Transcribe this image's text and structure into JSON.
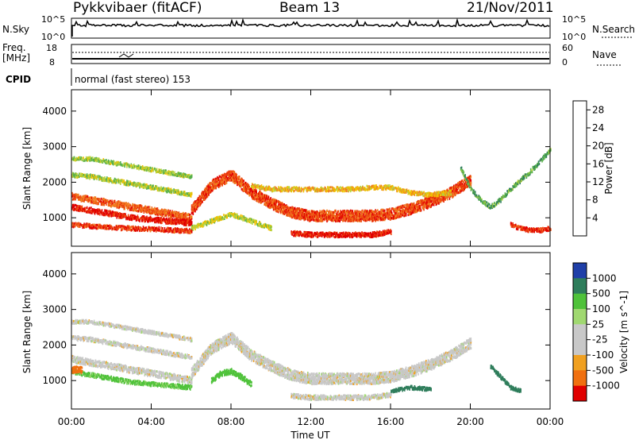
{
  "header": {
    "station": "Pykkvibaer (fitACF)",
    "beam": "Beam 13",
    "date": "21/Nov/2011"
  },
  "nsky_panel": {
    "left_label": "N.Sky",
    "left_ticks": [
      "10^5",
      "10^0"
    ],
    "right_ticks": [
      "10^5",
      "10^0"
    ],
    "right_label": "N.Search"
  },
  "freq_panel": {
    "left_label_1": "Freq.",
    "left_label_2": "[MHz]",
    "left_ticks": [
      "18",
      "8"
    ],
    "right_ticks": [
      "60",
      "0"
    ],
    "right_label": "Nave"
  },
  "cpid_panel": {
    "label": "CPID",
    "text": "normal (fast stereo) 153"
  },
  "colors": {
    "power_scale": [
      "#0000ff",
      "#1b4fa0",
      "#2e7d5b",
      "#56b04a",
      "#b5d23e",
      "#f0c000",
      "#f08020",
      "#ee4a10",
      "#e00000"
    ],
    "velocity_scale": [
      "#1f3fa8",
      "#2e7d5b",
      "#4fc23a",
      "#a0d870",
      "#c8c8c8",
      "#c8c8c8",
      "#f0a020",
      "#f07010",
      "#e00000"
    ],
    "ground_scatter": "#c8c8c8"
  },
  "chart_data": [
    {
      "type": "heatmap",
      "title": "",
      "ylabel": "Slant Range [km]",
      "xlabel": "",
      "x_ticks": [
        "00:00",
        "04:00",
        "08:00",
        "12:00",
        "16:00",
        "20:00",
        "00:00"
      ],
      "y_ticks": [
        1000,
        2000,
        3000,
        4000
      ],
      "ylim": [
        200,
        4600
      ],
      "xlim_hours": [
        0,
        24
      ],
      "colorbar": {
        "label": "Power [dB]",
        "ticks": [
          "4",
          "8",
          "12",
          "16",
          "20",
          "24",
          "28"
        ],
        "range": [
          0,
          30
        ]
      },
      "bands": [
        {
          "t": [
            0,
            1,
            2,
            3,
            4,
            5,
            6
          ],
          "r": [
            2650,
            2650,
            2550,
            2450,
            2350,
            2250,
            2150
          ],
          "w": 100,
          "p": 14
        },
        {
          "t": [
            0,
            1,
            2,
            3,
            4,
            5,
            6
          ],
          "r": [
            2200,
            2150,
            2050,
            1950,
            1850,
            1750,
            1650
          ],
          "w": 120,
          "p": 15
        },
        {
          "t": [
            0,
            1,
            2,
            3,
            4,
            5,
            6
          ],
          "r": [
            1600,
            1500,
            1400,
            1300,
            1200,
            1100,
            1000
          ],
          "w": 180,
          "p": 24
        },
        {
          "t": [
            0,
            1,
            2,
            3,
            4,
            5,
            6
          ],
          "r": [
            1300,
            1200,
            1100,
            1000,
            950,
            900,
            850
          ],
          "w": 150,
          "p": 28
        },
        {
          "t": [
            0,
            1,
            2,
            3,
            4,
            5,
            6
          ],
          "r": [
            800,
            760,
            720,
            700,
            680,
            650,
            620
          ],
          "w": 120,
          "p": 26
        },
        {
          "t": [
            6,
            7,
            8,
            9,
            10,
            11,
            12,
            13,
            14,
            15,
            16,
            17,
            18,
            19,
            20
          ],
          "r": [
            1200,
            1900,
            2200,
            1700,
            1400,
            1150,
            1050,
            1050,
            1050,
            1050,
            1100,
            1250,
            1450,
            1700,
            2050
          ],
          "w": 300,
          "p": 25
        },
        {
          "t": [
            9,
            10,
            11,
            12,
            13,
            14,
            15,
            16,
            17,
            18,
            19
          ],
          "r": [
            1900,
            1800,
            1800,
            1800,
            1800,
            1800,
            1850,
            1850,
            1700,
            1650,
            1700
          ],
          "w": 120,
          "p": 19
        },
        {
          "t": [
            11,
            12,
            13,
            14,
            15,
            16
          ],
          "r": [
            560,
            520,
            520,
            520,
            520,
            600
          ],
          "w": 130,
          "p": 28
        },
        {
          "t": [
            6,
            7,
            8,
            9,
            10
          ],
          "r": [
            700,
            900,
            1100,
            900,
            700
          ],
          "w": 120,
          "p": 16
        },
        {
          "t": [
            19.5,
            20,
            20.5,
            21,
            21.5,
            22,
            23,
            24
          ],
          "r": [
            2400,
            1800,
            1500,
            1300,
            1500,
            1800,
            2300,
            2900
          ],
          "w": 120,
          "p": 11
        },
        {
          "t": [
            22,
            22.5,
            23,
            23.5,
            24
          ],
          "r": [
            800,
            700,
            650,
            650,
            700
          ],
          "w": 120,
          "p": 27
        }
      ]
    },
    {
      "type": "heatmap",
      "title": "",
      "ylabel": "Slant Range [km]",
      "xlabel": "Time UT",
      "x_ticks": [
        "00:00",
        "04:00",
        "08:00",
        "12:00",
        "16:00",
        "20:00",
        "00:00"
      ],
      "y_ticks": [
        1000,
        2000,
        3000,
        4000
      ],
      "ylim": [
        200,
        4600
      ],
      "xlim_hours": [
        0,
        24
      ],
      "colorbar": {
        "label": "Velocity [m s^-1]",
        "ticks": [
          "1000",
          "500",
          "100",
          "25",
          "-25",
          "-100",
          "-500",
          "-1000"
        ]
      },
      "bands": [
        {
          "t": [
            0,
            1,
            2,
            3,
            4,
            5,
            6
          ],
          "r": [
            2650,
            2650,
            2550,
            2450,
            2350,
            2250,
            2150
          ],
          "w": 100,
          "v": 0
        },
        {
          "t": [
            0,
            1,
            2,
            3,
            4,
            5,
            6
          ],
          "r": [
            2200,
            2150,
            2050,
            1950,
            1850,
            1750,
            1650
          ],
          "w": 120,
          "v": 0
        },
        {
          "t": [
            0,
            1,
            2,
            3,
            4,
            5,
            6
          ],
          "r": [
            1600,
            1500,
            1400,
            1300,
            1200,
            1100,
            1000
          ],
          "w": 180,
          "v": 0
        },
        {
          "t": [
            0,
            1,
            2,
            3,
            4,
            5,
            6
          ],
          "r": [
            1250,
            1150,
            1050,
            950,
            900,
            850,
            800
          ],
          "w": 120,
          "v": 120
        },
        {
          "t": [
            6,
            7,
            8,
            9,
            10,
            11,
            12,
            13,
            14,
            15,
            16,
            17,
            18,
            19,
            20
          ],
          "r": [
            1200,
            1900,
            2200,
            1700,
            1400,
            1150,
            1050,
            1050,
            1050,
            1050,
            1100,
            1250,
            1450,
            1700,
            2050
          ],
          "w": 300,
          "v": 0
        },
        {
          "t": [
            7,
            7.5,
            8,
            8.5,
            9
          ],
          "r": [
            1000,
            1200,
            1250,
            1100,
            900
          ],
          "w": 150,
          "v": 130
        },
        {
          "t": [
            11,
            12,
            13,
            14,
            15,
            16
          ],
          "r": [
            560,
            520,
            520,
            520,
            520,
            600
          ],
          "w": 130,
          "v": 0
        },
        {
          "t": [
            16,
            17,
            18
          ],
          "r": [
            700,
            800,
            750
          ],
          "w": 100,
          "v": 600
        },
        {
          "t": [
            21,
            21.5,
            22,
            22.5
          ],
          "r": [
            1400,
            1100,
            800,
            700
          ],
          "w": 100,
          "v": 700
        },
        {
          "t": [
            0,
            0.5
          ],
          "r": [
            1300,
            1300
          ],
          "w": 180,
          "v": -300
        }
      ]
    }
  ]
}
